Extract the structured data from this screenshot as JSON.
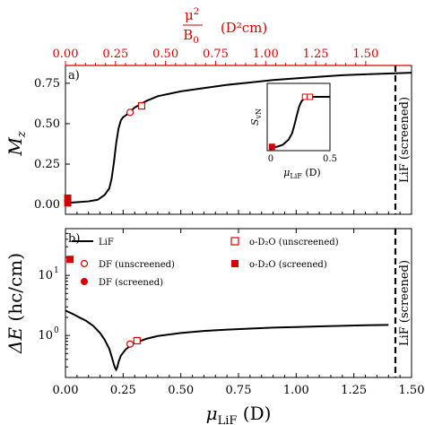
{
  "colors": {
    "data_red": "#d60000",
    "line": "#000000",
    "top_axis": "#d60000"
  },
  "top_axis": {
    "label_num": "μ",
    "label_sup": "2",
    "label_den": "B",
    "label_den_sub": "0",
    "label_unit": "(D²cm)",
    "ticks": [
      "0.00",
      "0.25",
      "0.50",
      "0.75",
      "1.00",
      "1.25",
      "1.50"
    ],
    "tick_values": [
      0.0,
      0.25,
      0.5,
      0.75,
      1.0,
      1.25,
      1.5
    ],
    "range": [
      0,
      1.729
    ]
  },
  "bottom_axis": {
    "label_main": "μ",
    "label_sub": "LiF",
    "label_unit": "(D)",
    "ticks": [
      "0.00",
      "0.25",
      "0.50",
      "0.75",
      "1.00",
      "1.25",
      "1.50"
    ]
  },
  "vline": {
    "x": 1.43,
    "label": "LiF (screened)"
  },
  "chart_data": [
    {
      "panel": "a)",
      "type": "line",
      "ylabel_main": "M",
      "ylabel_sub": "z",
      "xlim": [
        0,
        1.5
      ],
      "ylim": [
        -0.06,
        0.86
      ],
      "yticks": [
        "0.00",
        "0.25",
        "0.50",
        "0.75"
      ],
      "ytick_values": [
        0,
        0.25,
        0.5,
        0.75
      ],
      "series": [
        {
          "name": "LiF",
          "x": [
            0,
            0.05,
            0.1,
            0.14,
            0.17,
            0.19,
            0.2,
            0.21,
            0.22,
            0.23,
            0.24,
            0.25,
            0.27,
            0.3,
            0.35,
            0.4,
            0.5,
            0.6,
            0.7,
            0.8,
            0.9,
            1.0,
            1.1,
            1.2,
            1.3,
            1.4,
            1.5
          ],
          "y": [
            0.01,
            0.015,
            0.02,
            0.03,
            0.06,
            0.1,
            0.16,
            0.26,
            0.38,
            0.47,
            0.52,
            0.54,
            0.56,
            0.6,
            0.64,
            0.67,
            0.7,
            0.72,
            0.74,
            0.755,
            0.77,
            0.78,
            0.79,
            0.8,
            0.805,
            0.81,
            0.815
          ]
        },
        {
          "name": "DF (unscreened)",
          "x": [
            0.28
          ],
          "y": [
            0.57
          ]
        },
        {
          "name": "o-D2O (unscreened)",
          "x": [
            0.33
          ],
          "y": [
            0.61
          ]
        },
        {
          "name": "o-D2O (screened)",
          "x": [
            0.01,
            0.01
          ],
          "y": [
            0.01,
            0.04
          ]
        }
      ],
      "inset": {
        "ylabel_main": "S",
        "ylabel_sub": "vN",
        "xlabel_main": "μ",
        "xlabel_sub": "LiF",
        "xlabel_unit": "(D)",
        "xlim": [
          -0.03,
          0.5
        ],
        "ylim": [
          -0.05,
          1.0
        ],
        "xticks": [
          "0",
          "0.5"
        ],
        "xtick_values": [
          0,
          0.5
        ],
        "line_x": [
          0,
          0.05,
          0.1,
          0.15,
          0.18,
          0.2,
          0.22,
          0.24,
          0.26,
          0.28,
          0.3,
          0.35,
          0.4,
          0.45,
          0.5
        ],
        "line_y": [
          0.0,
          0.01,
          0.04,
          0.12,
          0.22,
          0.35,
          0.5,
          0.64,
          0.72,
          0.76,
          0.78,
          0.79,
          0.79,
          0.79,
          0.79
        ],
        "markers_open": [
          {
            "x": 0.29,
            "y": 0.79
          },
          {
            "x": 0.33,
            "y": 0.79
          }
        ],
        "markers_filled": [
          {
            "x": 0.01,
            "y": 0.01
          }
        ]
      }
    },
    {
      "panel": "b)",
      "type": "line",
      "ylabel_main": "ΔE",
      "ylabel_unit": "(hc/cm)",
      "xlim": [
        0,
        1.5
      ],
      "log_y": true,
      "ylim": [
        0.2,
        60
      ],
      "yticks_base": [
        "10",
        "10"
      ],
      "yticks_exp": [
        "0",
        "1"
      ],
      "ytick_values": [
        1,
        10
      ],
      "series": [
        {
          "name": "LiF",
          "x": [
            0,
            0.03,
            0.06,
            0.09,
            0.12,
            0.15,
            0.17,
            0.19,
            0.2,
            0.21,
            0.215,
            0.22,
            0.225,
            0.23,
            0.24,
            0.26,
            0.28,
            0.3,
            0.35,
            0.4,
            0.5,
            0.6,
            0.7,
            0.8,
            0.9,
            1.0,
            1.1,
            1.2,
            1.3,
            1.4
          ],
          "y": [
            2.6,
            2.3,
            2.0,
            1.75,
            1.45,
            1.1,
            0.85,
            0.6,
            0.45,
            0.33,
            0.29,
            0.27,
            0.3,
            0.36,
            0.46,
            0.58,
            0.67,
            0.75,
            0.88,
            0.98,
            1.1,
            1.19,
            1.25,
            1.3,
            1.35,
            1.38,
            1.42,
            1.45,
            1.48,
            1.5
          ]
        },
        {
          "name": "DF (unscreened)",
          "x": [
            0.28
          ],
          "y": [
            0.72
          ]
        },
        {
          "name": "DF (screened)",
          "x": [],
          "y": []
        },
        {
          "name": "o-D2O (unscreened)",
          "x": [
            0.31
          ],
          "y": [
            0.82
          ]
        },
        {
          "name": "o-D2O (screened)",
          "x": [
            0.02
          ],
          "y": [
            18.5
          ]
        }
      ],
      "legend": [
        {
          "label": "LiF",
          "symbol": "line"
        },
        {
          "label": "DF (unscreened)",
          "symbol": "open-circle"
        },
        {
          "label": "DF (screened)",
          "symbol": "filled-circle"
        },
        {
          "label": "o-D₂O (unscreened)",
          "symbol": "open-square"
        },
        {
          "label": "o-D₂O (screened)",
          "symbol": "filled-square"
        }
      ]
    }
  ]
}
